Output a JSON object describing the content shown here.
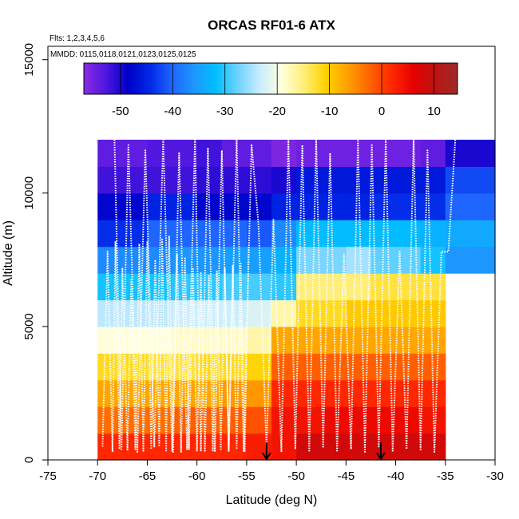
{
  "chart_data": {
    "type": "heatmap",
    "title": "ORCAS RF01-6 ATX",
    "xlabel": "Latitude (deg N)",
    "ylabel": "Altitude (m)",
    "xlim": [
      -75,
      -30
    ],
    "ylim": [
      0,
      15500
    ],
    "x_ticks": [
      -75,
      -70,
      -65,
      -60,
      -55,
      -50,
      -45,
      -40,
      -35,
      -30
    ],
    "x_tick_labels": [
      "-75",
      "-70",
      "-65",
      "-60",
      "-55",
      "-50",
      "-45",
      "-40",
      "-35",
      "-30"
    ],
    "y_ticks": [
      0,
      5000,
      10000,
      15000
    ],
    "y_tick_labels": [
      "0",
      "5000",
      "10000",
      "15000"
    ],
    "annotations": {
      "flights": "Flts: 1,2,3,4,5,6",
      "dates": "MMDD: 0115,0118,0121,0123,0125,0125"
    },
    "colorbar": {
      "min": -57,
      "max": 14.5,
      "ticks": [
        -50,
        -40,
        -30,
        -20,
        -10,
        0,
        10
      ],
      "tick_labels": [
        "-50",
        "-40",
        "-30",
        "-20",
        "-10",
        "0",
        "10"
      ],
      "colors": [
        "#8a2be2",
        "#4f17e0",
        "#0000c8",
        "#0028e6",
        "#1e64ff",
        "#1e96ff",
        "#00beff",
        "#6ed2ff",
        "#c8ecff",
        "#ffffdc",
        "#ffee7a",
        "#ffd200",
        "#ffa000",
        "#ff6400",
        "#ff2800",
        "#e60000",
        "#bb1414",
        "#9e2a2a"
      ]
    },
    "grid": {
      "lat_edges": [
        -70,
        -67.5,
        -65,
        -62.5,
        -60,
        -57.5,
        -55,
        -52.5,
        -50,
        -47.5,
        -45,
        -42.5,
        -40,
        -37.5,
        -35,
        -32.5,
        -30
      ],
      "alt_edges": [
        0,
        1000,
        2000,
        3000,
        4000,
        5000,
        6000,
        7000,
        8000,
        9000,
        10000,
        11000,
        12000
      ],
      "values": [
        [
          2,
          2,
          2,
          2,
          2,
          2,
          3,
          4,
          8,
          8,
          8,
          8,
          8,
          8,
          null,
          null
        ],
        [
          -3,
          -3,
          -3,
          -2,
          -2,
          -2,
          -1,
          4,
          4,
          5,
          5,
          5,
          5,
          4,
          null,
          null
        ],
        [
          -7,
          -7,
          -7,
          -7,
          -7,
          -6,
          -6,
          2,
          2,
          2,
          2,
          2,
          2,
          2,
          null,
          null
        ],
        [
          -12,
          -12,
          -13,
          -13,
          -12,
          -12,
          -11,
          -2,
          -2,
          -2,
          -2,
          -2,
          -2,
          -2,
          null,
          null
        ],
        [
          -19,
          -19,
          -19,
          -18,
          -18,
          -18,
          -17,
          -7,
          -7,
          -7,
          -7,
          -7,
          -7,
          -7,
          null,
          null
        ],
        [
          -24,
          -24,
          -24,
          -23,
          -23,
          -23,
          -22,
          -17,
          -12,
          -12,
          -10,
          -10,
          -10,
          -10,
          null,
          null
        ],
        [
          -31,
          -31,
          -31,
          -30,
          -30,
          -29,
          -29,
          -30,
          -15,
          -15,
          -15,
          -13,
          -13,
          -13,
          null,
          null
        ],
        [
          -37,
          -37,
          -37,
          -36,
          -36,
          -35,
          -35,
          -33,
          -27,
          -27,
          -25,
          -28,
          -28,
          -31,
          -36,
          -36
        ],
        [
          -44,
          -44,
          -40,
          -40,
          -40,
          -40,
          -41,
          -37,
          -32,
          -32,
          -32,
          -32,
          -32,
          -33,
          -34,
          -34
        ],
        [
          -48,
          -48,
          -45,
          -45,
          -48,
          -48,
          -48,
          -45,
          -45,
          -45,
          -45,
          -44,
          -44,
          -44,
          -40,
          -40
        ],
        [
          -52,
          -52,
          -52,
          -52,
          -51,
          -51,
          -51,
          -50,
          -46,
          -46,
          -46,
          -46,
          -46,
          -46,
          -42,
          -42
        ],
        [
          -54,
          -54,
          -53,
          -53,
          -52,
          -54,
          -54,
          -56,
          -55,
          -55,
          -55,
          -55,
          -55,
          -54,
          -50,
          -50
        ],
        [
          -53,
          -53,
          -53,
          -52,
          -53,
          -53,
          -53,
          -57,
          -57,
          -53,
          -53,
          -54,
          -54,
          -52,
          -50,
          -50
        ]
      ]
    },
    "markers": [
      {
        "label": "down-arrow",
        "lat": -53,
        "alt": 0
      },
      {
        "label": "down-arrow",
        "lat": -41.5,
        "alt": 0
      }
    ],
    "flight_tracks": [
      {
        "name": "track-1",
        "lat": [
          -69.5,
          -69.0,
          -68.5,
          -68.2,
          -67.8,
          -67.5,
          -67.0,
          -66.6,
          -66.2,
          -65.8,
          -65.4,
          -65.0,
          -64.6,
          -64.2,
          -63.8,
          -63.5,
          -63.1,
          -62.8,
          -62.4,
          -62.0
        ],
        "alt": [
          500,
          7800,
          300,
          8200,
          400,
          7200,
          350,
          6800,
          400,
          8100,
          300,
          8200,
          400,
          7500,
          500,
          8300,
          350,
          8400,
          300,
          7700
        ]
      },
      {
        "name": "track-2",
        "lat": [
          -62.0,
          -61.6,
          -61.2,
          -60.8,
          -60.4,
          -60.0,
          -59.6,
          -59.2,
          -58.8,
          -58.4,
          -58.0,
          -57.6,
          -57.2,
          -56.8,
          -56.4,
          -56.0,
          -55.6,
          -55.2,
          -54.8
        ],
        "alt": [
          7700,
          300,
          7600,
          400,
          7200,
          350,
          7000,
          300,
          6900,
          350,
          7100,
          400,
          7200,
          300,
          7300,
          400,
          7400,
          300,
          8000
        ]
      },
      {
        "name": "track-3",
        "lat": [
          -68.3,
          -67.6,
          -66.9,
          -66.0,
          -65.2,
          -64.3,
          -63.4,
          -62.5,
          -61.8,
          -61.0,
          -60.2,
          -59.6,
          -58.9,
          -58.2,
          -57.5,
          -56.8,
          -56.0,
          -55.3,
          -54.5,
          -53.8,
          -53.0,
          -52.3,
          -51.5
        ],
        "alt": [
          12000,
          400,
          11800,
          300,
          11600,
          500,
          12000,
          300,
          11500,
          400,
          12000,
          350,
          11700,
          300,
          11600,
          400,
          12000,
          300,
          11800,
          8800,
          400,
          9000,
          300
        ]
      },
      {
        "name": "track-4",
        "lat": [
          -51.5,
          -50.8,
          -50.1,
          -49.4,
          -48.7,
          -48.0,
          -47.3,
          -46.6,
          -45.9,
          -45.2,
          -44.5,
          -43.8,
          -43.1,
          -42.4,
          -41.7,
          -41.0,
          -40.3,
          -39.6,
          -38.9,
          -38.2,
          -37.5,
          -36.8,
          -36.1,
          -35.4,
          -34.7,
          -34.0
        ],
        "alt": [
          300,
          12000,
          400,
          11800,
          300,
          12000,
          450,
          11500,
          300,
          7700,
          400,
          12000,
          300,
          11800,
          500,
          12000,
          300,
          7800,
          400,
          12000,
          350,
          11600,
          300,
          7800,
          7800,
          12000
        ]
      }
    ]
  }
}
